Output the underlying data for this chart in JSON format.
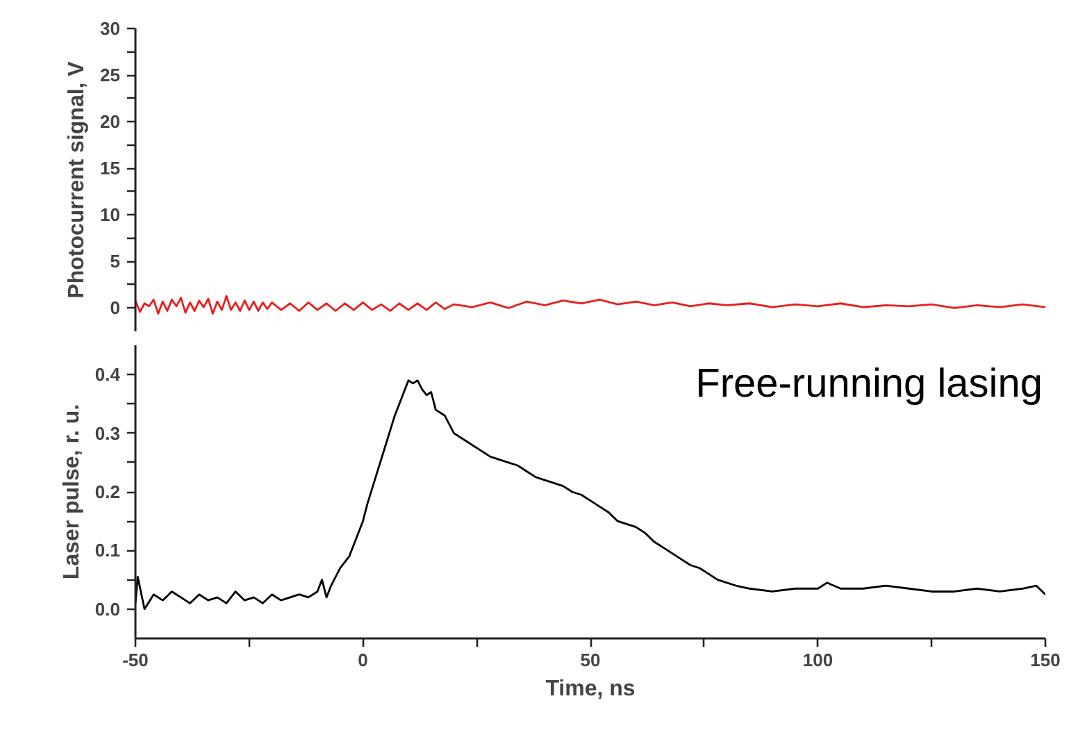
{
  "chart_data": [
    {
      "type": "line",
      "ylabel": "Photocurrent signal, V",
      "tick_labels": "y",
      "xlim": [
        -50,
        150
      ],
      "ylim": [
        -2.5,
        30
      ],
      "yticks": [
        0,
        {
          "value": 2.5,
          "label": null
        },
        5,
        {
          "value": 7.5,
          "label": null
        },
        10,
        {
          "value": 12.5,
          "label": null
        },
        15,
        {
          "value": 17.5,
          "label": null
        },
        20,
        {
          "value": 22.5,
          "label": null
        },
        25,
        {
          "value": 27.5,
          "label": null
        },
        30
      ],
      "grid": false,
      "series": [
        {
          "color": "#e8201c",
          "x": [
            -50,
            -49,
            -48,
            -47,
            -46,
            -45,
            -44,
            -43,
            -42,
            -41,
            -40,
            -39,
            -38,
            -37,
            -36,
            -35,
            -34,
            -33,
            -32,
            -31,
            -30,
            -29,
            -28,
            -27,
            -26,
            -25,
            -24,
            -23,
            -22,
            -21,
            -20,
            -18,
            -16,
            -14,
            -12,
            -10,
            -8,
            -6,
            -4,
            -2,
            0,
            2,
            4,
            6,
            8,
            10,
            12,
            14,
            16,
            18,
            20,
            24,
            28,
            32,
            36,
            40,
            44,
            48,
            52,
            56,
            60,
            64,
            68,
            72,
            76,
            80,
            85,
            90,
            95,
            100,
            105,
            110,
            115,
            120,
            125,
            130,
            135,
            140,
            145,
            150
          ],
          "values": [
            0.8,
            -0.4,
            0.5,
            0.2,
            0.9,
            -0.6,
            0.7,
            -0.3,
            0.9,
            0.2,
            1.1,
            -0.5,
            0.6,
            -0.3,
            0.8,
            0.1,
            1.0,
            -0.6,
            0.7,
            -0.2,
            1.3,
            -0.2,
            0.6,
            -0.3,
            0.8,
            -0.2,
            0.7,
            -0.3,
            0.6,
            -0.1,
            0.6,
            -0.2,
            0.5,
            -0.3,
            0.6,
            -0.2,
            0.5,
            -0.3,
            0.5,
            -0.2,
            0.6,
            -0.2,
            0.4,
            -0.3,
            0.5,
            -0.2,
            0.5,
            -0.2,
            0.6,
            -0.1,
            0.4,
            0.1,
            0.6,
            0.0,
            0.7,
            0.3,
            0.8,
            0.5,
            0.9,
            0.4,
            0.7,
            0.3,
            0.6,
            0.2,
            0.5,
            0.3,
            0.5,
            0.1,
            0.4,
            0.2,
            0.5,
            0.1,
            0.3,
            0.2,
            0.4,
            0.0,
            0.3,
            0.1,
            0.4,
            0.1
          ]
        }
      ]
    },
    {
      "type": "line",
      "xlabel": "Time, ns",
      "ylabel": "Laser pulse, r. u.",
      "xlim": [
        -50,
        150
      ],
      "ylim": [
        -0.05,
        0.45
      ],
      "xticks": [
        -50,
        {
          "value": -25,
          "label": null
        },
        0,
        {
          "value": 25,
          "label": null
        },
        50,
        {
          "value": 75,
          "label": null
        },
        100,
        {
          "value": 125,
          "label": null
        },
        150
      ],
      "yticks": [
        {
          "value": 0,
          "label": "0.0"
        },
        {
          "value": 0.05,
          "label": null
        },
        0.1,
        {
          "value": 0.15,
          "label": null
        },
        0.2,
        {
          "value": 0.25,
          "label": null
        },
        0.3,
        {
          "value": 0.35,
          "label": null
        },
        0.4
      ],
      "grid": false,
      "annotations": [
        "Free-running lasing"
      ],
      "series": [
        {
          "color": "#000000",
          "x": [
            -50,
            -49.5,
            -48,
            -46,
            -44,
            -42,
            -40,
            -38,
            -36,
            -34,
            -32,
            -30,
            -28,
            -26,
            -24,
            -22,
            -20,
            -18,
            -16,
            -14,
            -12,
            -10,
            -9,
            -8,
            -7,
            -5,
            -3,
            -1,
            0,
            1,
            3,
            5,
            7,
            8,
            9,
            10,
            11,
            12,
            13,
            14,
            15,
            16,
            18,
            20,
            22,
            24,
            26,
            28,
            30,
            32,
            34,
            36,
            38,
            40,
            42,
            44,
            46,
            48,
            50,
            52,
            54,
            56,
            58,
            60,
            62,
            64,
            66,
            68,
            70,
            72,
            74,
            76,
            78,
            80,
            82,
            85,
            90,
            95,
            100,
            102,
            105,
            110,
            115,
            120,
            125,
            130,
            135,
            140,
            145,
            148,
            150
          ],
          "values": [
            0.01,
            0.055,
            0.0,
            0.025,
            0.015,
            0.03,
            0.02,
            0.01,
            0.025,
            0.015,
            0.02,
            0.01,
            0.03,
            0.015,
            0.02,
            0.01,
            0.025,
            0.015,
            0.02,
            0.025,
            0.02,
            0.03,
            0.05,
            0.02,
            0.04,
            0.07,
            0.09,
            0.13,
            0.15,
            0.18,
            0.23,
            0.28,
            0.33,
            0.35,
            0.37,
            0.39,
            0.385,
            0.39,
            0.375,
            0.365,
            0.37,
            0.34,
            0.33,
            0.3,
            0.29,
            0.28,
            0.27,
            0.26,
            0.255,
            0.25,
            0.245,
            0.235,
            0.225,
            0.22,
            0.215,
            0.21,
            0.2,
            0.195,
            0.185,
            0.175,
            0.165,
            0.15,
            0.145,
            0.14,
            0.13,
            0.115,
            0.105,
            0.095,
            0.085,
            0.075,
            0.07,
            0.06,
            0.05,
            0.045,
            0.04,
            0.035,
            0.03,
            0.035,
            0.035,
            0.045,
            0.035,
            0.035,
            0.04,
            0.035,
            0.03,
            0.03,
            0.035,
            0.03,
            0.035,
            0.04,
            0.025
          ]
        }
      ]
    }
  ]
}
